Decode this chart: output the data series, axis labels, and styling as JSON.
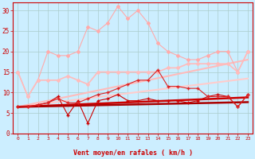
{
  "xlabel": "Vent moyen/en rafales ( km/h )",
  "x_ticks": [
    0,
    1,
    2,
    3,
    4,
    5,
    6,
    7,
    8,
    9,
    10,
    11,
    12,
    13,
    14,
    15,
    16,
    17,
    18,
    19,
    20,
    21,
    22,
    23
  ],
  "ylim": [
    0,
    32
  ],
  "yticks": [
    0,
    5,
    10,
    15,
    20,
    25,
    30
  ],
  "bg_color": "#cceeff",
  "grid_color": "#aacccc",
  "series": [
    {
      "label": "rafales_upper",
      "y": [
        15,
        9,
        13,
        20,
        19,
        19,
        20,
        26,
        25,
        27,
        31,
        28,
        30,
        27,
        22,
        20,
        19,
        18,
        18,
        19,
        20,
        20,
        15,
        20
      ],
      "color": "#ffaaaa",
      "lw": 0.8,
      "marker": "D",
      "ms": 2.0,
      "linestyle": "-",
      "zorder": 2
    },
    {
      "label": "moy_upper",
      "y": [
        15,
        9,
        13,
        13,
        13,
        14,
        13,
        12,
        15,
        15,
        15,
        15,
        15,
        15,
        15,
        16,
        16,
        17,
        17,
        17,
        17,
        17,
        15,
        20
      ],
      "color": "#ffbbbb",
      "lw": 1.2,
      "marker": "D",
      "ms": 2.0,
      "linestyle": "-",
      "zorder": 2
    },
    {
      "label": "trend_upper1",
      "y": [
        6.5,
        7.0,
        7.5,
        8.0,
        8.5,
        9.0,
        9.5,
        10.0,
        10.5,
        11.0,
        11.5,
        12.0,
        12.5,
        13.0,
        13.5,
        14.0,
        14.5,
        15.0,
        15.5,
        16.0,
        16.5,
        17.0,
        17.5,
        18.0
      ],
      "color": "#ffbbbb",
      "lw": 1.5,
      "marker": null,
      "ms": 0,
      "linestyle": "-",
      "zorder": 1
    },
    {
      "label": "trend_upper2",
      "y": [
        6.5,
        6.8,
        7.1,
        7.4,
        7.7,
        8.0,
        8.3,
        8.6,
        8.9,
        9.2,
        9.5,
        9.8,
        10.1,
        10.4,
        10.7,
        11.0,
        11.3,
        11.6,
        11.9,
        12.2,
        12.5,
        12.8,
        13.1,
        13.4
      ],
      "color": "#ffcccc",
      "lw": 1.5,
      "marker": null,
      "ms": 0,
      "linestyle": "-",
      "zorder": 1
    },
    {
      "label": "rafales_lower",
      "y": [
        6.5,
        6.5,
        7.0,
        7.5,
        9.0,
        4.5,
        8.0,
        2.5,
        8.0,
        8.5,
        9.5,
        8.0,
        8.0,
        8.5,
        8.0,
        8.0,
        8.0,
        7.5,
        8.0,
        9.0,
        9.5,
        9.0,
        6.5,
        9.5
      ],
      "color": "#cc0000",
      "lw": 0.8,
      "marker": "+",
      "ms": 3.5,
      "linestyle": "-",
      "zorder": 3
    },
    {
      "label": "moy_lower",
      "y": [
        6.5,
        6.5,
        7.0,
        7.5,
        8.5,
        7.5,
        7.5,
        8.5,
        9.5,
        10.0,
        11.0,
        12.0,
        13.0,
        13.0,
        15.5,
        11.5,
        11.5,
        11.0,
        11.0,
        9.0,
        9.0,
        9.0,
        6.5,
        9.5
      ],
      "color": "#dd2222",
      "lw": 0.8,
      "marker": "+",
      "ms": 3.5,
      "linestyle": "-",
      "zorder": 3
    },
    {
      "label": "trend_lower1",
      "y": [
        6.5,
        6.6,
        6.7,
        6.8,
        6.9,
        7.0,
        7.1,
        7.2,
        7.3,
        7.4,
        7.5,
        7.6,
        7.7,
        7.8,
        7.9,
        8.0,
        8.1,
        8.2,
        8.3,
        8.4,
        8.5,
        8.6,
        8.7,
        8.8
      ],
      "color": "#cc0000",
      "lw": 1.8,
      "marker": null,
      "ms": 0,
      "linestyle": "-",
      "zorder": 1
    },
    {
      "label": "trend_lower2",
      "y": [
        6.5,
        6.55,
        6.6,
        6.65,
        6.7,
        6.75,
        6.8,
        6.85,
        6.9,
        6.95,
        7.0,
        7.05,
        7.1,
        7.15,
        7.2,
        7.25,
        7.3,
        7.35,
        7.4,
        7.45,
        7.5,
        7.55,
        7.6,
        7.65
      ],
      "color": "#aa0000",
      "lw": 1.8,
      "marker": null,
      "ms": 0,
      "linestyle": "-",
      "zorder": 1
    }
  ],
  "wind_arrows": [
    225,
    90,
    90,
    90,
    90,
    90,
    225,
    270,
    90,
    90,
    45,
    45,
    90,
    90,
    90,
    90,
    90,
    90,
    90,
    45,
    45,
    45,
    90,
    135
  ],
  "arrow_color": "#cc0000"
}
